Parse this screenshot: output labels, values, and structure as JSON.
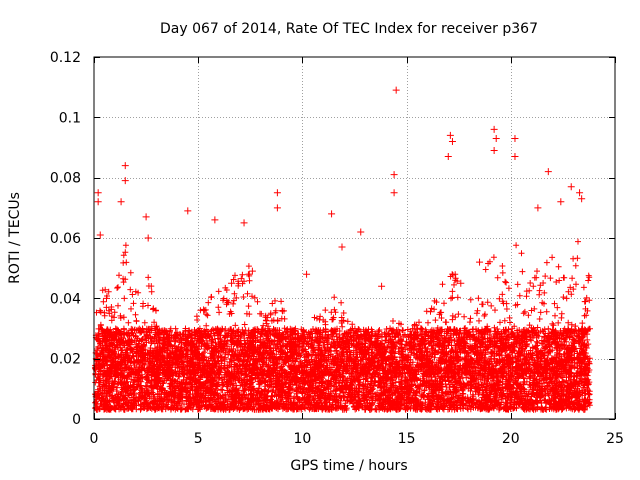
{
  "chart_data": {
    "type": "scatter",
    "title": "Day 067 of 2014, Rate Of TEC Index for receiver p367",
    "xlabel": "GPS time / hours",
    "ylabel": "ROTI / TECUs",
    "xlim": [
      0,
      25
    ],
    "ylim": [
      0,
      0.12
    ],
    "xticks": [
      0,
      5,
      10,
      15,
      20,
      25
    ],
    "xtick_labels": [
      "0",
      "5",
      "10",
      "15",
      "20",
      "25"
    ],
    "yticks": [
      0,
      0.02,
      0.04,
      0.06,
      0.08,
      0.1,
      0.12
    ],
    "ytick_labels": [
      "0",
      "0.02",
      "0.04",
      "0.06",
      "0.08",
      "0.1",
      "0.12"
    ],
    "grid": true,
    "marker": "plus",
    "series_color": "#ff0000",
    "series": [
      {
        "name": "ROTI",
        "description": "dense cloud of ~12000 samples between 0.003 and 0.03 TECU spanning 0 to 23.8 h; extremes listed below",
        "band": {
          "x_range": [
            0.05,
            23.8
          ],
          "y_range": [
            0.003,
            0.03
          ]
        },
        "points": [
          {
            "x": 0.2,
            "y": 0.075
          },
          {
            "x": 0.2,
            "y": 0.072
          },
          {
            "x": 0.3,
            "y": 0.061
          },
          {
            "x": 1.5,
            "y": 0.084
          },
          {
            "x": 1.5,
            "y": 0.079
          },
          {
            "x": 1.3,
            "y": 0.072
          },
          {
            "x": 2.5,
            "y": 0.067
          },
          {
            "x": 2.6,
            "y": 0.06
          },
          {
            "x": 4.5,
            "y": 0.069
          },
          {
            "x": 5.8,
            "y": 0.066
          },
          {
            "x": 7.2,
            "y": 0.065
          },
          {
            "x": 8.8,
            "y": 0.075
          },
          {
            "x": 8.8,
            "y": 0.07
          },
          {
            "x": 11.4,
            "y": 0.068
          },
          {
            "x": 12.8,
            "y": 0.062
          },
          {
            "x": 14.5,
            "y": 0.109
          },
          {
            "x": 14.4,
            "y": 0.081
          },
          {
            "x": 14.4,
            "y": 0.075
          },
          {
            "x": 17.1,
            "y": 0.094
          },
          {
            "x": 17.2,
            "y": 0.092
          },
          {
            "x": 17.0,
            "y": 0.087
          },
          {
            "x": 19.2,
            "y": 0.096
          },
          {
            "x": 19.3,
            "y": 0.093
          },
          {
            "x": 19.2,
            "y": 0.089
          },
          {
            "x": 20.2,
            "y": 0.093
          },
          {
            "x": 20.2,
            "y": 0.087
          },
          {
            "x": 21.8,
            "y": 0.082
          },
          {
            "x": 22.9,
            "y": 0.077
          },
          {
            "x": 23.3,
            "y": 0.075
          },
          {
            "x": 23.4,
            "y": 0.073
          },
          {
            "x": 22.4,
            "y": 0.072
          },
          {
            "x": 0.6,
            "y": 0.04
          },
          {
            "x": 6.6,
            "y": 0.045
          },
          {
            "x": 7.6,
            "y": 0.049
          },
          {
            "x": 10.2,
            "y": 0.048
          },
          {
            "x": 11.9,
            "y": 0.057
          },
          {
            "x": 13.8,
            "y": 0.044
          },
          {
            "x": 17.6,
            "y": 0.045
          },
          {
            "x": 18.5,
            "y": 0.052
          },
          {
            "x": 21.3,
            "y": 0.07
          }
        ]
      }
    ]
  }
}
